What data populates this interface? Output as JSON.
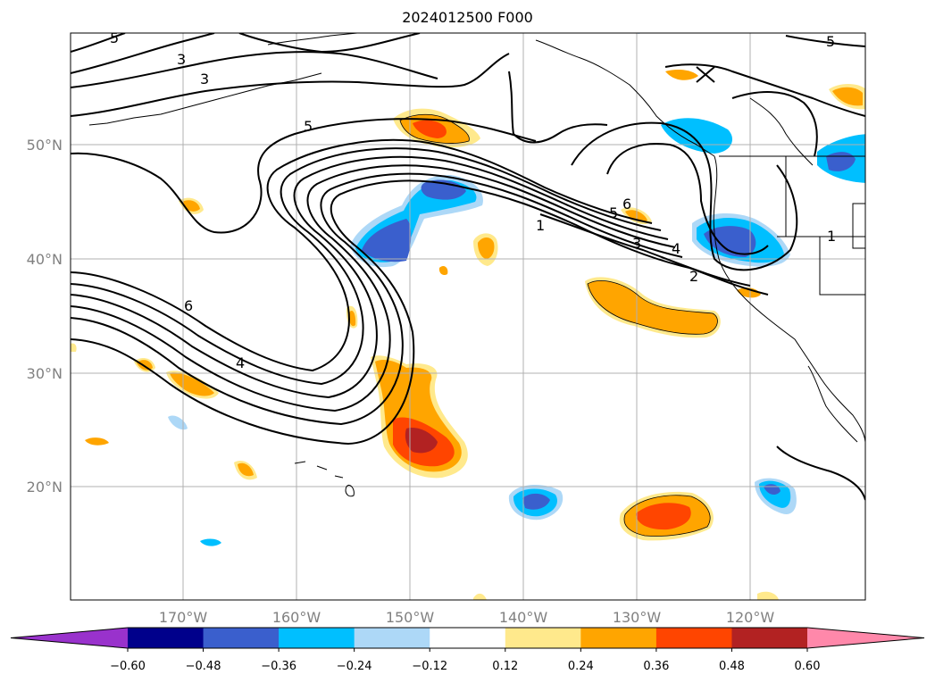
{
  "title": "2024012500 F000",
  "lat_labels": [
    "50°N",
    "40°N",
    "30°N",
    "20°N"
  ],
  "lon_labels": [
    "170°W",
    "160°W",
    "150°W",
    "140°W",
    "130°W",
    "120°W"
  ],
  "contour_labels": [
    "5",
    "3",
    "3",
    "5",
    "1",
    "2",
    "3",
    "4",
    "5",
    "6",
    "6",
    "4",
    "5",
    "1"
  ],
  "colorbar": {
    "ticks": [
      "−0.60",
      "−0.48",
      "−0.36",
      "−0.24",
      "−0.12",
      "0.12",
      "0.24",
      "0.36",
      "0.48",
      "0.60"
    ],
    "colors": [
      "#9932cc",
      "#00008b",
      "#3a5fcd",
      "#00bfff",
      "#add8f7",
      "#ffffff",
      "#ffe98c",
      "#ffa500",
      "#ff4500",
      "#b22222",
      "#ff88aa"
    ]
  },
  "shading_colors": {
    "light_yellow": "#ffe98c",
    "orange": "#ffa500",
    "red_orange": "#ff4500",
    "dark_red": "#b22222",
    "light_blue": "#add8f7",
    "cyan": "#00bfff",
    "royal_blue": "#3a5fcd"
  }
}
